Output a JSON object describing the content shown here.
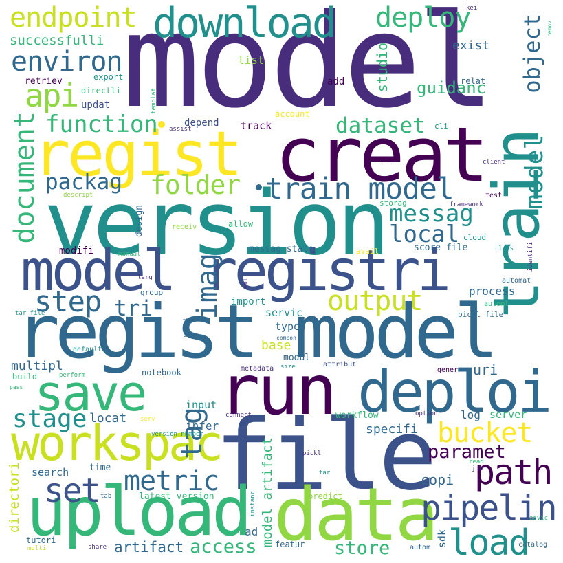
{
  "words": {
    "model": "model",
    "regist": "regist",
    "creat": "creat",
    "train": "train",
    "version": "version",
    "model_registri": "model registri",
    "regist_model": "regist model",
    "run": "run",
    "deploi": "deploi",
    "save": "save",
    "file": "file",
    "workspac": "workspac",
    "upload": "upload",
    "data": "data",
    "download": "download",
    "endpoint": "endpoint",
    "deploy": "deploy",
    "environ": "environ",
    "successfulli": "successfulli",
    "api": "api",
    "function": "function",
    "dataset": "dataset",
    "document": "document",
    "packag": "packag",
    "folder": "folder",
    "train_model": "train model",
    "messag": "messag",
    "local": "local",
    "step": "step",
    "imag": "imag",
    "output": "output",
    "tri": "tri",
    "tag": "tag",
    "bucket": "bucket",
    "path": "path",
    "metric": "metric",
    "set": "set",
    "stage": "stage",
    "paramet": "paramet",
    "pipelin": "pipelin",
    "load": "load",
    "access": "access",
    "store": "store",
    "artifact": "artifact",
    "object": "object",
    "studio": "studio",
    "guidanc": "guidanc",
    "exist": "exist",
    "list": "list",
    "export": "export",
    "retriev": "retriev",
    "directli": "directli",
    "updat": "updat",
    "add": "add",
    "relat": "relat",
    "depend": "depend",
    "track": "track",
    "account": "account",
    "assist": "assist",
    "templat": "templat",
    "cli": "cli",
    "addit": "addit",
    "client": "client",
    "kei": "kei",
    "remov": "remov",
    "test": "test",
    "framework": "framework",
    "storag": "storag",
    "allow": "allow",
    "descript": "descript",
    "receiv": "receiv",
    "design": "design",
    "modifi": "modifi",
    "messag_state": "messag state",
    "avail": "avail",
    "score_file": "score file",
    "cloud": "cloud",
    "class": "class",
    "identifi": "identifi",
    "manual": "manual",
    "larg": "larg",
    "aml": "aml",
    "group": "group",
    "process": "process",
    "automat": "automat",
    "import": "import",
    "servic": "servic",
    "automl": "automl",
    "tar_file": "tar file",
    "select": "select",
    "pickl_file": "pickl file",
    "type": "type",
    "base": "base",
    "compon": "compon",
    "default": "default",
    "modul": "modul",
    "multipl": "multipl",
    "attribut": "attribut",
    "build": "build",
    "perform": "perform",
    "notebook": "notebook",
    "metadata": "metadata",
    "size": "size",
    "gener": "gener",
    "uri": "uri",
    "pass": "pass",
    "input": "input",
    "locat": "locat",
    "infer": "infer",
    "specifi": "specifi",
    "log": "log",
    "server": "server",
    "workflow": "workflow",
    "connect": "connect",
    "option": "option",
    "serv": "serv",
    "version_number": "version number",
    "directori": "directori",
    "search": "search",
    "time": "time",
    "copi": "copi",
    "pickl": "pickl",
    "read": "read",
    "job": "job",
    "tar": "tar",
    "model_artifact": "model artifact",
    "latest_version": "latest version",
    "predict": "predict",
    "instanc": "instanc",
    "tab": "tab",
    "advic": "advic",
    "ad": "ad",
    "sdk": "sdk",
    "tutori": "tutori",
    "multi": "multi",
    "share": "share",
    "featur": "featur",
    "autom": "autom",
    "catalog": "catalog",
    "model_v": "model"
  },
  "palette": {
    "purple": "#472d7b",
    "dark": "#440154",
    "indigo": "#3b528b",
    "blue": "#31688e",
    "teal": "#21908d",
    "green": "#35b779",
    "lime": "#90d743",
    "yellow": "#fde725",
    "olive": "#c8e020"
  }
}
